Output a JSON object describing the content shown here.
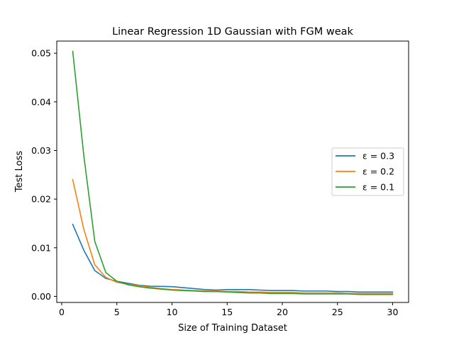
{
  "chart_data": {
    "type": "line",
    "title": "Linear Regression 1D Gaussian with FGM weak",
    "xlabel": "Size of Training Dataset",
    "ylabel": "Test Loss",
    "xlim": [
      -0.45,
      31.45
    ],
    "ylim": [
      -0.00125,
      0.0525
    ],
    "xticks": [
      0,
      5,
      10,
      15,
      20,
      25,
      30
    ],
    "xtick_labels": [
      "0",
      "5",
      "10",
      "15",
      "20",
      "25",
      "30"
    ],
    "yticks": [
      0.0,
      0.01,
      0.02,
      0.03,
      0.04,
      0.05
    ],
    "ytick_labels": [
      "0.00",
      "0.01",
      "0.02",
      "0.03",
      "0.04",
      "0.05"
    ],
    "grid": false,
    "legend_position": "center-right",
    "x": [
      1,
      2,
      3,
      4,
      5,
      6,
      7,
      8,
      9,
      10,
      11,
      12,
      13,
      14,
      15,
      16,
      17,
      18,
      19,
      20,
      21,
      22,
      23,
      24,
      25,
      26,
      27,
      28,
      29,
      30
    ],
    "series": [
      {
        "name": "ε = 0.3",
        "color": "#1f77b4",
        "values": [
          0.0148,
          0.0095,
          0.0053,
          0.0037,
          0.0031,
          0.0027,
          0.0023,
          0.0021,
          0.00205,
          0.002,
          0.0018,
          0.0016,
          0.0014,
          0.0013,
          0.0014,
          0.0014,
          0.0014,
          0.0013,
          0.0012,
          0.0012,
          0.0012,
          0.0011,
          0.0011,
          0.0011,
          0.001,
          0.001,
          0.0009,
          0.0009,
          0.0009,
          0.0009
        ]
      },
      {
        "name": "ε = 0.2",
        "color": "#ff7f0e",
        "values": [
          0.024,
          0.0138,
          0.0065,
          0.0039,
          0.0029,
          0.0025,
          0.0022,
          0.0019,
          0.0016,
          0.0014,
          0.0013,
          0.0012,
          0.0011,
          0.0011,
          0.001,
          0.001,
          0.0009,
          0.0009,
          0.0008,
          0.0008,
          0.0008,
          0.0007,
          0.0007,
          0.0007,
          0.0007,
          0.0006,
          0.0006,
          0.0006,
          0.0006,
          0.0006
        ]
      },
      {
        "name": "ε = 0.1",
        "color": "#2ca02c",
        "values": [
          0.0504,
          0.029,
          0.0113,
          0.0049,
          0.0031,
          0.0024,
          0.002,
          0.0017,
          0.0015,
          0.0013,
          0.0012,
          0.0011,
          0.001,
          0.001,
          0.0009,
          0.0008,
          0.0007,
          0.0007,
          0.0006,
          0.0006,
          0.0006,
          0.0005,
          0.0005,
          0.0005,
          0.0005,
          0.0005,
          0.0004,
          0.0004,
          0.0004,
          0.0004
        ]
      }
    ]
  }
}
